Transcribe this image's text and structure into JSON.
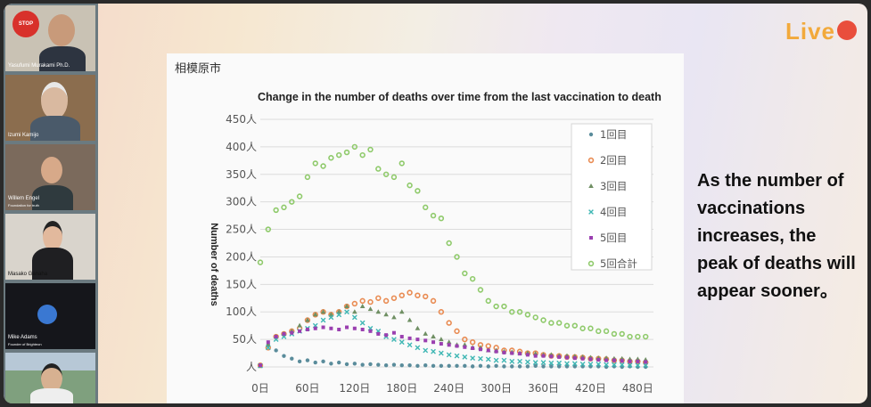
{
  "participants": [
    {
      "name": "Yasufumi Murakami Ph.D.",
      "subtitle": "",
      "badge": "STOP"
    },
    {
      "name": "Izumi Kamijo",
      "subtitle": ""
    },
    {
      "name": "Willem Engel",
      "subtitle": "Foundation for truth"
    },
    {
      "name": "Masako Ganaha",
      "subtitle": ""
    },
    {
      "name": "Mike Adams",
      "subtitle": "Founder of Brighteon"
    },
    {
      "name": "",
      "subtitle": ""
    }
  ],
  "brand": {
    "logo_text": "Live"
  },
  "slide": {
    "city": "相模原市",
    "caption": "As the number of vaccinations increases, the peak of deaths will appear sooner。"
  },
  "colors": {
    "dose1": "#5a8c9b",
    "dose2": "#e98b52",
    "dose3": "#6f8f63",
    "dose4": "#3fb7b4",
    "dose5": "#9a3fb0",
    "total": "#8fca6b"
  },
  "chart_data": {
    "type": "scatter",
    "title": "Change in the number of deaths over time from the last vaccination to death",
    "xlabel": "",
    "ylabel": "Number of deaths",
    "xlim": [
      0,
      500
    ],
    "ylim": [
      0,
      450
    ],
    "x_ticks": [
      "0日",
      "60日",
      "120日",
      "180日",
      "240日",
      "300日",
      "360日",
      "420日",
      "480日"
    ],
    "y_ticks": [
      "人",
      "50人",
      "100人",
      "150人",
      "200人",
      "250人",
      "300人",
      "350人",
      "400人",
      "450人"
    ],
    "legend_position": "top-right",
    "grid": true,
    "series": [
      {
        "name": "1回目",
        "marker": "circle",
        "color_key": "dose1",
        "x": [
          0,
          10,
          20,
          30,
          40,
          50,
          60,
          70,
          80,
          90,
          100,
          110,
          120,
          130,
          140,
          150,
          160,
          170,
          180,
          190,
          200,
          210,
          220,
          230,
          240,
          250,
          260,
          270,
          280,
          290,
          300,
          310,
          320,
          330,
          340,
          350,
          360,
          370,
          380,
          390,
          400,
          410,
          420,
          430,
          440,
          450,
          460,
          470,
          480,
          490
        ],
        "y": [
          2,
          40,
          30,
          20,
          15,
          10,
          12,
          8,
          10,
          6,
          8,
          5,
          6,
          4,
          5,
          4,
          3,
          4,
          3,
          3,
          2,
          3,
          2,
          2,
          2,
          2,
          2,
          1,
          2,
          1,
          2,
          1,
          1,
          1,
          1,
          2,
          1,
          1,
          1,
          1,
          1,
          1,
          1,
          1,
          0,
          1,
          0,
          1,
          0,
          0
        ]
      },
      {
        "name": "2回目",
        "marker": "circle-open",
        "color_key": "dose2",
        "x": [
          0,
          10,
          20,
          30,
          40,
          50,
          60,
          70,
          80,
          90,
          100,
          110,
          120,
          130,
          140,
          150,
          160,
          170,
          180,
          190,
          200,
          210,
          220,
          230,
          240,
          250,
          260,
          270,
          280,
          290,
          300,
          310,
          320,
          330,
          340,
          350,
          360,
          370,
          380,
          390,
          400,
          410,
          420,
          430,
          440,
          450,
          460,
          470,
          480,
          490
        ],
        "y": [
          3,
          35,
          55,
          60,
          65,
          70,
          85,
          95,
          100,
          95,
          100,
          110,
          115,
          120,
          118,
          125,
          120,
          125,
          130,
          135,
          130,
          128,
          120,
          100,
          80,
          65,
          50,
          45,
          40,
          38,
          35,
          30,
          30,
          28,
          25,
          25,
          22,
          20,
          20,
          18,
          18,
          17,
          15,
          15,
          14,
          12,
          12,
          10,
          10,
          8
        ]
      },
      {
        "name": "3回目",
        "marker": "triangle",
        "color_key": "dose3",
        "x": [
          0,
          10,
          20,
          30,
          40,
          50,
          60,
          70,
          80,
          90,
          100,
          110,
          120,
          130,
          140,
          150,
          160,
          170,
          180,
          190,
          200,
          210,
          220,
          230,
          240,
          250,
          260,
          270,
          280,
          290,
          300,
          310,
          320,
          330,
          340,
          350,
          360,
          370,
          380,
          390,
          400,
          410,
          420,
          430,
          440,
          450,
          460,
          470,
          480,
          490
        ],
        "y": [
          2,
          40,
          55,
          60,
          65,
          75,
          85,
          95,
          100,
          95,
          100,
          110,
          100,
          110,
          105,
          100,
          95,
          90,
          100,
          85,
          70,
          60,
          55,
          50,
          45,
          40,
          40,
          35,
          35,
          30,
          30,
          28,
          27,
          25,
          25,
          24,
          22,
          22,
          20,
          20,
          19,
          18,
          17,
          16,
          16,
          15,
          15,
          14,
          14,
          13
        ]
      },
      {
        "name": "4回目",
        "marker": "x",
        "color_key": "dose4",
        "x": [
          0,
          10,
          20,
          30,
          40,
          50,
          60,
          70,
          80,
          90,
          100,
          110,
          120,
          130,
          140,
          150,
          160,
          170,
          180,
          190,
          200,
          210,
          220,
          230,
          240,
          250,
          260,
          270,
          280,
          290,
          300,
          310,
          320,
          330,
          340,
          350,
          360,
          370,
          380,
          390,
          400,
          410,
          420,
          430,
          440,
          450,
          460,
          470,
          480,
          490
        ],
        "y": [
          2,
          35,
          50,
          55,
          60,
          65,
          70,
          75,
          85,
          90,
          95,
          100,
          90,
          80,
          70,
          65,
          55,
          50,
          45,
          40,
          35,
          30,
          28,
          25,
          22,
          20,
          18,
          16,
          15,
          14,
          12,
          12,
          10,
          10,
          9,
          8,
          8,
          7,
          7,
          6,
          6,
          5,
          5,
          5,
          4,
          4,
          4,
          3,
          3,
          3
        ]
      },
      {
        "name": "5回目",
        "marker": "square",
        "color_key": "dose5",
        "x": [
          0,
          10,
          20,
          30,
          40,
          50,
          60,
          70,
          80,
          90,
          100,
          110,
          120,
          130,
          140,
          150,
          160,
          170,
          180,
          190,
          200,
          210,
          220,
          230,
          240,
          250,
          260,
          270,
          280,
          290,
          300,
          310,
          320,
          330,
          340,
          350,
          360,
          370,
          380,
          390,
          400,
          410,
          420,
          430,
          440,
          450,
          460,
          470,
          480,
          490
        ],
        "y": [
          3,
          45,
          55,
          60,
          62,
          65,
          68,
          70,
          72,
          70,
          68,
          72,
          70,
          68,
          65,
          60,
          58,
          62,
          55,
          52,
          50,
          48,
          45,
          42,
          40,
          38,
          36,
          34,
          32,
          30,
          28,
          26,
          25,
          24,
          22,
          20,
          20,
          19,
          18,
          17,
          16,
          15,
          14,
          13,
          12,
          12,
          11,
          10,
          10,
          9
        ]
      },
      {
        "name": "5回合計",
        "marker": "circle-open",
        "color_key": "total",
        "x": [
          0,
          10,
          20,
          30,
          40,
          50,
          60,
          70,
          80,
          90,
          100,
          110,
          120,
          130,
          140,
          150,
          160,
          170,
          180,
          190,
          200,
          210,
          220,
          230,
          240,
          250,
          260,
          270,
          280,
          290,
          300,
          310,
          320,
          330,
          340,
          350,
          360,
          370,
          380,
          390,
          400,
          410,
          420,
          430,
          440,
          450,
          460,
          470,
          480,
          490
        ],
        "y": [
          190,
          250,
          285,
          290,
          300,
          310,
          345,
          370,
          365,
          380,
          385,
          390,
          400,
          385,
          395,
          360,
          350,
          345,
          370,
          330,
          320,
          290,
          275,
          270,
          225,
          200,
          170,
          160,
          140,
          120,
          110,
          110,
          100,
          100,
          95,
          90,
          85,
          80,
          80,
          75,
          75,
          70,
          70,
          65,
          65,
          60,
          60,
          55,
          55,
          55
        ]
      }
    ]
  }
}
